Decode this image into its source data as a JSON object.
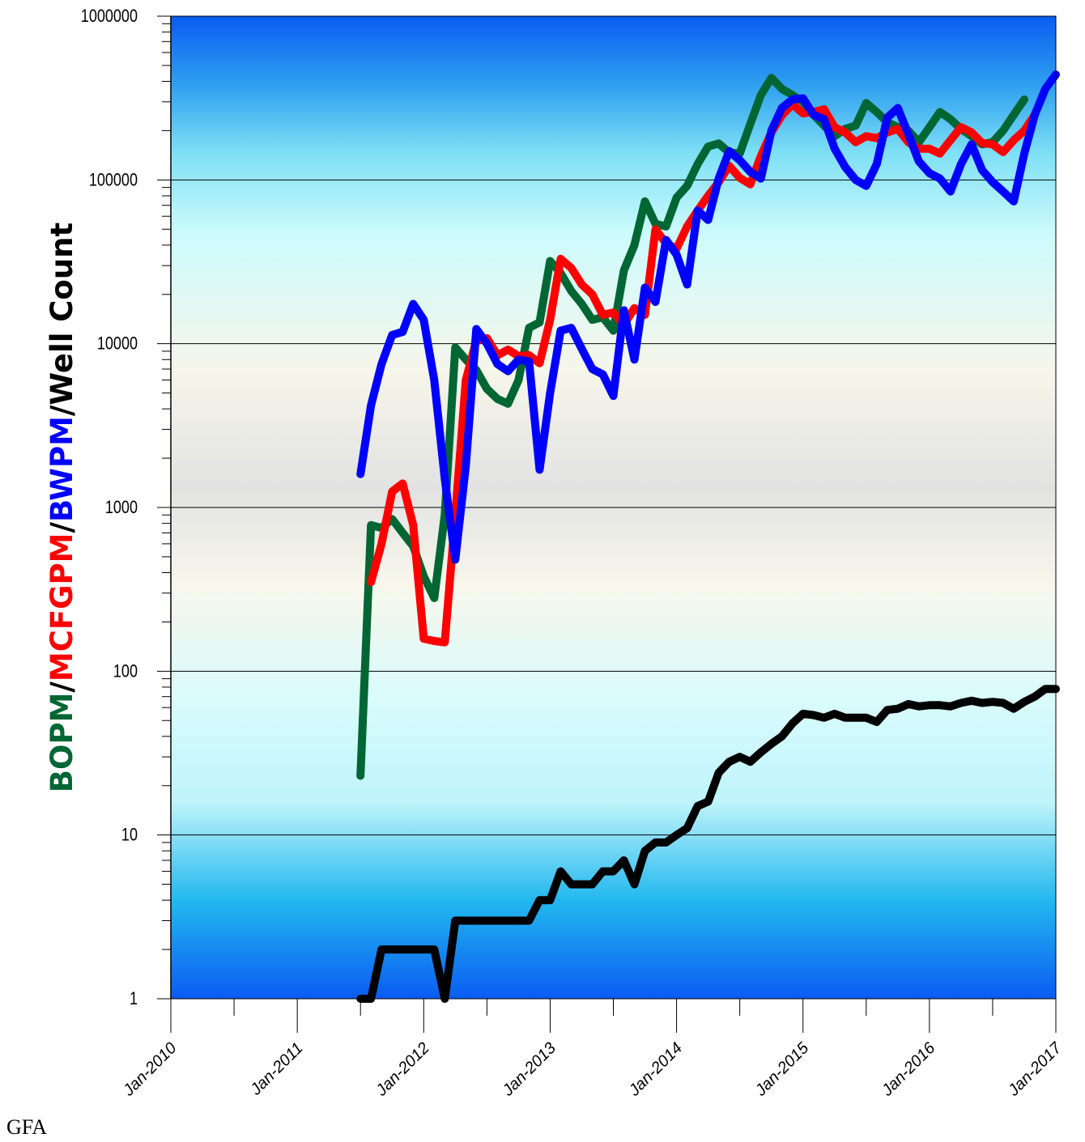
{
  "chart_data": {
    "type": "line",
    "y_scale": "log",
    "ylim": [
      1,
      1000000
    ],
    "xlim": [
      "2010-01",
      "2017-01"
    ],
    "ylabel_parts": [
      {
        "text": "BOPM",
        "color": "#006633"
      },
      {
        "text": "/",
        "color": "#000000"
      },
      {
        "text": "MCFGPM",
        "color": "#ff0000"
      },
      {
        "text": "/",
        "color": "#000000"
      },
      {
        "text": "BWPM",
        "color": "#0000ff"
      },
      {
        "text": "/Well Count",
        "color": "#000000"
      }
    ],
    "ytick_labels": [
      "1",
      "10",
      "100",
      "1000",
      "10000",
      "100000",
      "1000000"
    ],
    "xtick_labels": [
      "Jan-2010",
      "Jan-2011",
      "Jan-2012",
      "Jan-2013",
      "Jan-2014",
      "Jan-2015",
      "Jan-2016",
      "Jan-2017"
    ],
    "grid": true,
    "background": "vertical gradient blue-cyan-beige-cyan-blue",
    "series": [
      {
        "key": "oil",
        "color": "#006633",
        "points": [
          [
            "2011-07",
            23
          ],
          [
            "2011-08",
            780
          ],
          [
            "2011-09",
            750
          ],
          [
            "2011-10",
            850
          ],
          [
            "2011-11",
            700
          ],
          [
            "2011-12",
            580
          ],
          [
            "2012-01",
            380
          ],
          [
            "2012-02",
            280
          ],
          [
            "2012-03",
            900
          ],
          [
            "2012-04",
            9500
          ],
          [
            "2012-05",
            8000
          ],
          [
            "2012-06",
            6900
          ],
          [
            "2012-07",
            5300
          ],
          [
            "2012-08",
            4600
          ],
          [
            "2012-09",
            4300
          ],
          [
            "2012-10",
            6000
          ],
          [
            "2012-11",
            12500
          ],
          [
            "2012-12",
            13500
          ],
          [
            "2013-01",
            32000
          ],
          [
            "2013-02",
            27000
          ],
          [
            "2013-03",
            21000
          ],
          [
            "2013-04",
            17500
          ],
          [
            "2013-05",
            14000
          ],
          [
            "2013-06",
            14500
          ],
          [
            "2013-07",
            12000
          ],
          [
            "2013-08",
            28000
          ],
          [
            "2013-09",
            40000
          ],
          [
            "2013-10",
            74000
          ],
          [
            "2013-11",
            54000
          ],
          [
            "2013-12",
            52000
          ],
          [
            "2014-01",
            78000
          ],
          [
            "2014-02",
            92000
          ],
          [
            "2014-03",
            125000
          ],
          [
            "2014-04",
            160000
          ],
          [
            "2014-05",
            167000
          ],
          [
            "2014-06",
            147000
          ],
          [
            "2014-07",
            145000
          ],
          [
            "2014-08",
            220000
          ],
          [
            "2014-09",
            330000
          ],
          [
            "2014-10",
            420000
          ],
          [
            "2014-11",
            360000
          ],
          [
            "2014-12",
            330000
          ],
          [
            "2015-01",
            300000
          ],
          [
            "2015-02",
            250000
          ],
          [
            "2015-03",
            215000
          ],
          [
            "2015-04",
            185000
          ],
          [
            "2015-05",
            205000
          ],
          [
            "2015-06",
            215000
          ],
          [
            "2015-07",
            295000
          ],
          [
            "2015-08",
            260000
          ],
          [
            "2015-09",
            225000
          ],
          [
            "2015-10",
            210000
          ],
          [
            "2015-11",
            200000
          ],
          [
            "2015-12",
            170000
          ],
          [
            "2016-01",
            210000
          ],
          [
            "2016-02",
            260000
          ],
          [
            "2016-03",
            235000
          ],
          [
            "2016-04",
            205000
          ],
          [
            "2016-05",
            185000
          ],
          [
            "2016-06",
            165000
          ],
          [
            "2016-07",
            170000
          ],
          [
            "2016-08",
            200000
          ],
          [
            "2016-09",
            250000
          ],
          [
            "2016-10",
            310000
          ]
        ]
      },
      {
        "key": "gas",
        "color": "#ff0000",
        "points": [
          [
            "2011-08",
            350
          ],
          [
            "2011-09",
            600
          ],
          [
            "2011-10",
            1250
          ],
          [
            "2011-11",
            1400
          ],
          [
            "2011-12",
            780
          ],
          [
            "2012-01",
            158
          ],
          [
            "2012-02",
            153
          ],
          [
            "2012-03",
            150
          ],
          [
            "2012-04",
            900
          ],
          [
            "2012-05",
            6000
          ],
          [
            "2012-06",
            10500
          ],
          [
            "2012-07",
            10800
          ],
          [
            "2012-08",
            8500
          ],
          [
            "2012-09",
            9200
          ],
          [
            "2012-10",
            8400
          ],
          [
            "2012-11",
            8500
          ],
          [
            "2012-12",
            7600
          ],
          [
            "2013-01",
            14000
          ],
          [
            "2013-02",
            33000
          ],
          [
            "2013-03",
            29000
          ],
          [
            "2013-04",
            23000
          ],
          [
            "2013-05",
            20000
          ],
          [
            "2013-06",
            15000
          ],
          [
            "2013-07",
            15500
          ],
          [
            "2013-08",
            13000
          ],
          [
            "2013-09",
            16500
          ],
          [
            "2013-10",
            15000
          ],
          [
            "2013-11",
            50000
          ],
          [
            "2013-12",
            41000
          ],
          [
            "2014-01",
            38000
          ],
          [
            "2014-02",
            52000
          ],
          [
            "2014-03",
            65000
          ],
          [
            "2014-04",
            80000
          ],
          [
            "2014-05",
            97000
          ],
          [
            "2014-06",
            122000
          ],
          [
            "2014-07",
            103000
          ],
          [
            "2014-08",
            94000
          ],
          [
            "2014-09",
            140000
          ],
          [
            "2014-10",
            195000
          ],
          [
            "2014-11",
            248000
          ],
          [
            "2014-12",
            290000
          ],
          [
            "2015-01",
            255000
          ],
          [
            "2015-02",
            260000
          ],
          [
            "2015-03",
            270000
          ],
          [
            "2015-04",
            210000
          ],
          [
            "2015-05",
            195000
          ],
          [
            "2015-06",
            170000
          ],
          [
            "2015-07",
            185000
          ],
          [
            "2015-08",
            180000
          ],
          [
            "2015-09",
            195000
          ],
          [
            "2015-10",
            205000
          ],
          [
            "2015-11",
            170000
          ],
          [
            "2015-12",
            155000
          ],
          [
            "2016-01",
            155000
          ],
          [
            "2016-02",
            145000
          ],
          [
            "2016-03",
            175000
          ],
          [
            "2016-04",
            210000
          ],
          [
            "2016-05",
            195000
          ],
          [
            "2016-06",
            168000
          ],
          [
            "2016-07",
            165000
          ],
          [
            "2016-08",
            148000
          ],
          [
            "2016-09",
            175000
          ],
          [
            "2016-10",
            200000
          ],
          [
            "2016-11",
            250000
          ]
        ]
      },
      {
        "key": "water",
        "color": "#0000ff",
        "points": [
          [
            "2011-07",
            1600
          ],
          [
            "2011-08",
            4200
          ],
          [
            "2011-09",
            7500
          ],
          [
            "2011-10",
            11300
          ],
          [
            "2011-11",
            11800
          ],
          [
            "2011-12",
            17500
          ],
          [
            "2012-01",
            14000
          ],
          [
            "2012-02",
            6000
          ],
          [
            "2012-03",
            1500
          ],
          [
            "2012-04",
            480
          ],
          [
            "2012-05",
            1800
          ],
          [
            "2012-06",
            12300
          ],
          [
            "2012-07",
            10000
          ],
          [
            "2012-08",
            7500
          ],
          [
            "2012-09",
            6800
          ],
          [
            "2012-10",
            8000
          ],
          [
            "2012-11",
            7800
          ],
          [
            "2012-12",
            1700
          ],
          [
            "2013-01",
            5000
          ],
          [
            "2013-02",
            12000
          ],
          [
            "2013-03",
            12500
          ],
          [
            "2013-04",
            9300
          ],
          [
            "2013-05",
            7000
          ],
          [
            "2013-06",
            6500
          ],
          [
            "2013-07",
            4800
          ],
          [
            "2013-08",
            16000
          ],
          [
            "2013-09",
            8000
          ],
          [
            "2013-10",
            22000
          ],
          [
            "2013-11",
            18000
          ],
          [
            "2013-12",
            43000
          ],
          [
            "2014-01",
            35000
          ],
          [
            "2014-02",
            23000
          ],
          [
            "2014-03",
            65000
          ],
          [
            "2014-04",
            57000
          ],
          [
            "2014-05",
            102000
          ],
          [
            "2014-06",
            150000
          ],
          [
            "2014-07",
            132000
          ],
          [
            "2014-08",
            112000
          ],
          [
            "2014-09",
            102000
          ],
          [
            "2014-10",
            200000
          ],
          [
            "2014-11",
            275000
          ],
          [
            "2014-12",
            310000
          ],
          [
            "2015-01",
            315000
          ],
          [
            "2015-02",
            250000
          ],
          [
            "2015-03",
            235000
          ],
          [
            "2015-04",
            155000
          ],
          [
            "2015-05",
            120000
          ],
          [
            "2015-06",
            100000
          ],
          [
            "2015-07",
            92000
          ],
          [
            "2015-08",
            125000
          ],
          [
            "2015-09",
            240000
          ],
          [
            "2015-10",
            275000
          ],
          [
            "2015-11",
            190000
          ],
          [
            "2015-12",
            130000
          ],
          [
            "2016-01",
            110000
          ],
          [
            "2016-02",
            102000
          ],
          [
            "2016-03",
            85000
          ],
          [
            "2016-04",
            125000
          ],
          [
            "2016-05",
            165000
          ],
          [
            "2016-06",
            115000
          ],
          [
            "2016-07",
            97000
          ],
          [
            "2016-08",
            85000
          ],
          [
            "2016-09",
            74000
          ],
          [
            "2016-10",
            145000
          ],
          [
            "2016-11",
            250000
          ],
          [
            "2016-12",
            360000
          ],
          [
            "2017-01",
            440000
          ]
        ]
      },
      {
        "key": "well_count",
        "color": "#000000",
        "points": [
          [
            "2011-07",
            1
          ],
          [
            "2011-08",
            1
          ],
          [
            "2011-09",
            2
          ],
          [
            "2011-10",
            2
          ],
          [
            "2011-11",
            2
          ],
          [
            "2011-12",
            2
          ],
          [
            "2012-01",
            2
          ],
          [
            "2012-02",
            2
          ],
          [
            "2012-03",
            1
          ],
          [
            "2012-04",
            3
          ],
          [
            "2012-05",
            3
          ],
          [
            "2012-06",
            3
          ],
          [
            "2012-07",
            3
          ],
          [
            "2012-08",
            3
          ],
          [
            "2012-09",
            3
          ],
          [
            "2012-10",
            3
          ],
          [
            "2012-11",
            3
          ],
          [
            "2012-12",
            4
          ],
          [
            "2013-01",
            4
          ],
          [
            "2013-02",
            6
          ],
          [
            "2013-03",
            5
          ],
          [
            "2013-04",
            5
          ],
          [
            "2013-05",
            5
          ],
          [
            "2013-06",
            6
          ],
          [
            "2013-07",
            6
          ],
          [
            "2013-08",
            7
          ],
          [
            "2013-09",
            5
          ],
          [
            "2013-10",
            8
          ],
          [
            "2013-11",
            9
          ],
          [
            "2013-12",
            9
          ],
          [
            "2014-01",
            10
          ],
          [
            "2014-02",
            11
          ],
          [
            "2014-03",
            15
          ],
          [
            "2014-04",
            16
          ],
          [
            "2014-05",
            24
          ],
          [
            "2014-06",
            28
          ],
          [
            "2014-07",
            30
          ],
          [
            "2014-08",
            28
          ],
          [
            "2014-09",
            32
          ],
          [
            "2014-10",
            36
          ],
          [
            "2014-11",
            40
          ],
          [
            "2014-12",
            48
          ],
          [
            "2015-01",
            55
          ],
          [
            "2015-02",
            54
          ],
          [
            "2015-03",
            52
          ],
          [
            "2015-04",
            55
          ],
          [
            "2015-05",
            52
          ],
          [
            "2015-06",
            52
          ],
          [
            "2015-07",
            52
          ],
          [
            "2015-08",
            49
          ],
          [
            "2015-09",
            58
          ],
          [
            "2015-10",
            59
          ],
          [
            "2015-11",
            63
          ],
          [
            "2015-12",
            61
          ],
          [
            "2016-01",
            62
          ],
          [
            "2016-02",
            62
          ],
          [
            "2016-03",
            61
          ],
          [
            "2016-04",
            64
          ],
          [
            "2016-05",
            66
          ],
          [
            "2016-06",
            64
          ],
          [
            "2016-07",
            65
          ],
          [
            "2016-08",
            64
          ],
          [
            "2016-09",
            59
          ],
          [
            "2016-10",
            65
          ],
          [
            "2016-11",
            70
          ],
          [
            "2016-12",
            78
          ],
          [
            "2017-01",
            78
          ]
        ]
      }
    ]
  },
  "watermark": "GFA"
}
